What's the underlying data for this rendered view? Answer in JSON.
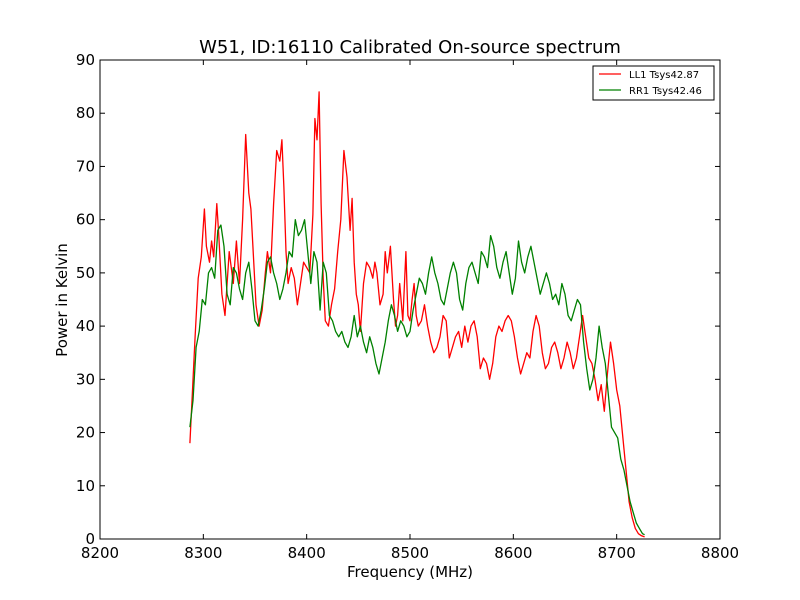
{
  "chart_data": {
    "type": "line",
    "title": "W51, ID:16110 Calibrated On-source spectrum",
    "xlabel": "Frequency (MHz)",
    "ylabel": "Power in Kelvin",
    "xlim": [
      8200,
      8800
    ],
    "ylim": [
      0,
      90
    ],
    "xticks": [
      8200,
      8300,
      8400,
      8500,
      8600,
      8700,
      8800
    ],
    "yticks": [
      0,
      10,
      20,
      30,
      40,
      50,
      60,
      70,
      80,
      90
    ],
    "grid": false,
    "legend_position": "top-right",
    "series": [
      {
        "name": "LL1 Tsys42.87",
        "color": "#ff0000",
        "x": [
          8287,
          8289,
          8292,
          8295,
          8298,
          8301,
          8303,
          8306,
          8308,
          8310,
          8313,
          8315,
          8318,
          8321,
          8325,
          8329,
          8332,
          8335,
          8338,
          8341,
          8344,
          8346,
          8348,
          8351,
          8354,
          8357,
          8360,
          8362,
          8365,
          8368,
          8371,
          8374,
          8376,
          8378,
          8380,
          8382,
          8385,
          8388,
          8391,
          8394,
          8397,
          8400,
          8403,
          8406,
          8408,
          8410,
          8412,
          8414,
          8416,
          8418,
          8421,
          8424,
          8427,
          8430,
          8433,
          8436,
          8439,
          8442,
          8444,
          8446,
          8448,
          8450,
          8452,
          8455,
          8458,
          8461,
          8464,
          8466,
          8468,
          8471,
          8474,
          8476,
          8478,
          8481,
          8484,
          8486,
          8488,
          8490,
          8493,
          8496,
          8498,
          8500,
          8502,
          8504,
          8506,
          8508,
          8511,
          8514,
          8517,
          8520,
          8523,
          8526,
          8529,
          8532,
          8535,
          8538,
          8541,
          8544,
          8547,
          8550,
          8553,
          8556,
          8559,
          8562,
          8565,
          8568,
          8571,
          8574,
          8577,
          8580,
          8583,
          8586,
          8589,
          8592,
          8595,
          8598,
          8601,
          8604,
          8607,
          8610,
          8613,
          8616,
          8619,
          8622,
          8625,
          8628,
          8631,
          8634,
          8637,
          8640,
          8643,
          8646,
          8649,
          8652,
          8655,
          8658,
          8661,
          8664,
          8667,
          8670,
          8673,
          8676,
          8679,
          8682,
          8685,
          8688,
          8691,
          8694,
          8697,
          8700,
          8703,
          8706,
          8709,
          8712,
          8715,
          8718,
          8721,
          8724,
          8727
        ],
        "y": [
          18,
          26,
          38,
          49,
          53,
          62,
          55,
          52,
          56,
          53,
          63,
          57,
          46,
          42,
          54,
          48,
          56,
          48,
          60,
          76,
          65,
          62,
          55,
          44,
          40,
          43,
          50,
          54,
          50,
          63,
          73,
          71,
          75,
          66,
          54,
          48,
          51,
          49,
          44,
          48,
          52,
          51,
          50,
          61,
          79,
          75,
          84,
          63,
          49,
          41,
          40,
          44,
          47,
          54,
          60,
          73,
          68,
          58,
          64,
          52,
          46,
          44,
          39,
          48,
          52,
          51,
          49,
          52,
          50,
          44,
          46,
          54,
          50,
          55,
          45,
          40,
          42,
          48,
          41,
          54,
          42,
          41,
          45,
          48,
          42,
          40,
          41,
          44,
          40,
          37,
          35,
          36,
          38,
          42,
          41,
          34,
          36,
          38,
          39,
          36,
          40,
          37,
          40,
          41,
          38,
          32,
          34,
          33,
          30,
          33,
          38,
          40,
          39,
          41,
          42,
          41,
          38,
          34,
          31,
          33,
          35,
          34,
          39,
          42,
          40,
          35,
          32,
          33,
          36,
          37,
          35,
          32,
          34,
          37,
          35,
          32,
          34,
          38,
          42,
          38,
          34,
          33,
          30,
          26,
          29,
          24,
          31,
          37,
          33,
          28,
          25,
          19,
          13,
          7,
          4,
          2,
          1,
          0.6,
          0.4
        ]
      },
      {
        "name": "RR1 Tsys42.46",
        "color": "#008000",
        "x": [
          8287,
          8290,
          8293,
          8296,
          8299,
          8302,
          8305,
          8308,
          8311,
          8314,
          8317,
          8320,
          8323,
          8326,
          8329,
          8332,
          8335,
          8338,
          8341,
          8344,
          8347,
          8350,
          8353,
          8356,
          8359,
          8362,
          8365,
          8368,
          8371,
          8374,
          8377,
          8380,
          8383,
          8386,
          8389,
          8392,
          8395,
          8398,
          8401,
          8404,
          8407,
          8410,
          8413,
          8416,
          8419,
          8422,
          8425,
          8428,
          8431,
          8434,
          8437,
          8440,
          8443,
          8446,
          8449,
          8452,
          8455,
          8458,
          8461,
          8464,
          8467,
          8470,
          8473,
          8476,
          8479,
          8482,
          8485,
          8488,
          8491,
          8494,
          8497,
          8500,
          8503,
          8506,
          8509,
          8512,
          8515,
          8518,
          8521,
          8524,
          8527,
          8530,
          8533,
          8536,
          8539,
          8542,
          8545,
          8548,
          8551,
          8554,
          8557,
          8560,
          8563,
          8566,
          8569,
          8572,
          8575,
          8578,
          8581,
          8584,
          8587,
          8590,
          8593,
          8596,
          8599,
          8602,
          8605,
          8608,
          8611,
          8614,
          8617,
          8620,
          8623,
          8626,
          8629,
          8632,
          8635,
          8638,
          8641,
          8644,
          8647,
          8650,
          8653,
          8656,
          8659,
          8662,
          8665,
          8668,
          8671,
          8674,
          8677,
          8680,
          8683,
          8686,
          8689,
          8692,
          8695,
          8698,
          8701,
          8704,
          8707,
          8710,
          8713,
          8716,
          8719,
          8722,
          8725,
          8727
        ],
        "y": [
          21,
          26,
          36,
          39,
          45,
          44,
          50,
          51,
          49,
          58,
          59,
          55,
          46,
          44,
          51,
          50,
          47,
          45,
          50,
          52,
          47,
          41,
          40,
          43,
          47,
          52,
          53,
          50,
          48,
          45,
          47,
          50,
          54,
          53,
          60,
          57,
          58,
          60,
          54,
          48,
          54,
          52,
          43,
          52,
          50,
          42,
          41,
          39,
          38,
          39,
          37,
          36,
          38,
          42,
          38,
          40,
          37,
          35,
          38,
          36,
          33,
          31,
          34,
          37,
          41,
          44,
          42,
          39,
          41,
          40,
          38,
          39,
          43,
          46,
          49,
          48,
          46,
          50,
          53,
          50,
          48,
          45,
          44,
          47,
          50,
          52,
          50,
          45,
          43,
          48,
          51,
          52,
          50,
          48,
          54,
          53,
          51,
          57,
          55,
          51,
          49,
          52,
          54,
          50,
          46,
          49,
          56,
          52,
          50,
          53,
          55,
          52,
          49,
          46,
          48,
          50,
          48,
          45,
          46,
          44,
          48,
          46,
          42,
          41,
          43,
          45,
          44,
          37,
          32,
          28,
          30,
          34,
          40,
          36,
          33,
          27,
          21,
          20,
          19,
          15,
          13,
          10,
          7,
          5,
          3,
          2,
          1,
          0.8
        ]
      }
    ]
  }
}
